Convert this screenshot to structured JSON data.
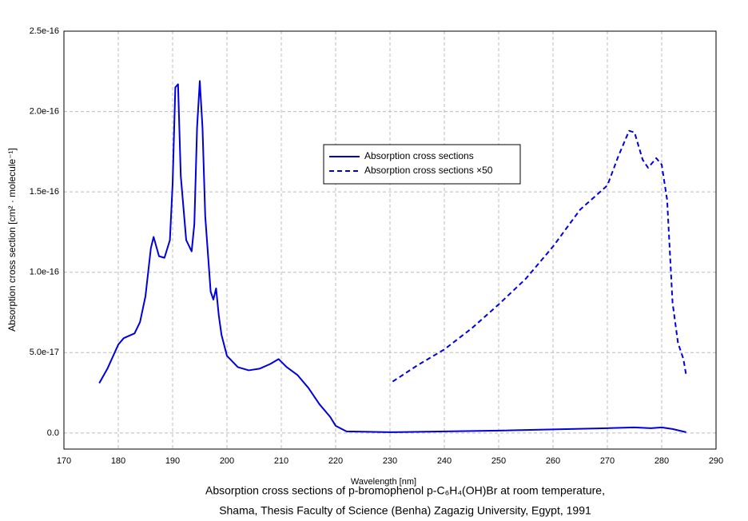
{
  "chart_data": {
    "type": "line",
    "x_label": "Wavelength [nm]",
    "y_label": "Absorption cross section [cm² · molecule⁻¹]",
    "caption": [
      "Absorption cross sections of p-bromophenol p-C₆H₄(OH)Br at room temperature,",
      "Shama, Thesis Faculty of Science (Benha) Zagazig University, Egypt, 1991"
    ],
    "xlim": [
      170,
      290
    ],
    "xticks": [
      170,
      180,
      190,
      200,
      210,
      220,
      230,
      240,
      250,
      260,
      270,
      280,
      290
    ],
    "ylim": [
      -1e-17,
      2.5e-16
    ],
    "yticks": [
      {
        "value": 0,
        "label": "0.0"
      },
      {
        "value": 5e-17,
        "label": "5.0e-17"
      },
      {
        "value": 1e-16,
        "label": "1.0e-16"
      },
      {
        "value": 1.5e-16,
        "label": "1.5e-16"
      },
      {
        "value": 2e-16,
        "label": "2.0e-16"
      },
      {
        "value": 2.5e-16,
        "label": "2.5e-16"
      }
    ],
    "grid": true,
    "legend": "center",
    "series": [
      {
        "name": "Absorption cross sections",
        "color": "#0000dd",
        "dashed": false,
        "x": [
          176.5,
          178,
          180,
          181,
          183,
          184,
          185,
          186,
          186.5,
          187.5,
          188.5,
          189.5,
          190,
          190.5,
          191,
          191.5,
          192.5,
          193.5,
          194,
          194.5,
          195,
          195.5,
          196,
          197,
          197.5,
          198,
          198.5,
          199,
          200,
          202,
          204,
          206,
          208,
          209.5,
          211,
          213,
          215,
          217,
          219,
          220,
          222,
          230,
          250,
          270,
          275,
          278,
          280,
          282,
          284.5
        ],
        "values": [
          3.1e-17,
          4e-17,
          5.5e-17,
          5.9e-17,
          6.2e-17,
          6.9e-17,
          8.5e-17,
          1.15e-16,
          1.22e-16,
          1.1e-16,
          1.09e-16,
          1.2e-16,
          1.55e-16,
          2.15e-16,
          2.17e-16,
          1.6e-16,
          1.2e-16,
          1.13e-16,
          1.3e-16,
          1.9e-16,
          2.19e-16,
          1.9e-16,
          1.35e-16,
          8.8e-17,
          8.3e-17,
          9e-17,
          7.3e-17,
          6.1e-17,
          4.8e-17,
          4.1e-17,
          3.9e-17,
          4e-17,
          4.3e-17,
          4.6e-17,
          4.1e-17,
          3.6e-17,
          2.8e-17,
          1.8e-17,
          1e-17,
          4.5e-18,
          1e-18,
          5e-19,
          1.5e-18,
          3e-18,
          3.5e-18,
          3e-18,
          3.5e-18,
          2.5e-18,
          5e-19
        ]
      },
      {
        "name": "Absorption cross sections ×50",
        "color": "#0000dd",
        "dashed": true,
        "x": [
          230.5,
          235,
          240,
          245,
          250,
          255,
          260,
          265,
          270,
          272,
          274,
          275,
          276.5,
          277.5,
          279,
          280,
          281,
          282,
          283,
          284,
          284.5
        ],
        "values": [
          3.2e-17,
          4.2e-17,
          5.2e-17,
          6.5e-17,
          8e-17,
          9.6e-17,
          1.16e-16,
          1.39e-16,
          1.54e-16,
          1.72e-16,
          1.88e-16,
          1.87e-16,
          1.7e-16,
          1.65e-16,
          1.71e-16,
          1.67e-16,
          1.45e-16,
          8.1e-17,
          5.6e-17,
          4.6e-17,
          3.6e-17
        ]
      }
    ]
  }
}
